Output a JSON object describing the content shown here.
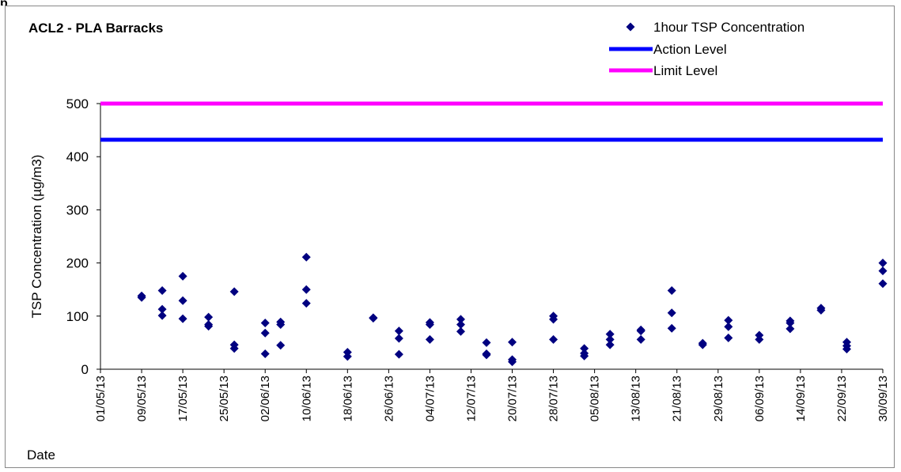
{
  "page_fragment": "p",
  "chart_data": {
    "type": "scatter",
    "title": "ACL2 - PLA Barracks",
    "xlabel": "Date",
    "ylabel": "TSP Concentration (µg/m3)",
    "ylim": [
      0,
      500
    ],
    "yticks": [
      "0",
      "100",
      "200",
      "300",
      "400",
      "500"
    ],
    "xlim": [
      "2013-05-01",
      "2013-09-30"
    ],
    "xticks": [
      "01/05/13",
      "09/05/13",
      "17/05/13",
      "25/05/13",
      "02/06/13",
      "10/06/13",
      "18/06/13",
      "26/06/13",
      "04/07/13",
      "12/07/13",
      "20/07/13",
      "28/07/13",
      "05/08/13",
      "13/08/13",
      "21/08/13",
      "29/08/13",
      "06/09/13",
      "14/09/13",
      "22/09/13",
      "30/09/13"
    ],
    "xtick_dates": [
      "2013-05-01",
      "2013-05-09",
      "2013-05-17",
      "2013-05-25",
      "2013-06-02",
      "2013-06-10",
      "2013-06-18",
      "2013-06-26",
      "2013-07-04",
      "2013-07-12",
      "2013-07-20",
      "2013-07-28",
      "2013-08-05",
      "2013-08-13",
      "2013-08-21",
      "2013-08-29",
      "2013-09-06",
      "2013-09-14",
      "2013-09-22",
      "2013-09-30"
    ],
    "grid": false,
    "legend_position": "top-right",
    "legend": [
      "1hour TSP Concentration",
      "Action Level",
      "Limit Level"
    ],
    "colors": {
      "points": "#000080",
      "action": "#0000ff",
      "limit": "#ff00ff"
    },
    "series": [
      {
        "name": "1hour TSP Concentration",
        "points": [
          [
            "2013-05-09",
            135
          ],
          [
            "2013-05-09",
            138
          ],
          [
            "2013-05-13",
            148
          ],
          [
            "2013-05-13",
            113
          ],
          [
            "2013-05-13",
            101
          ],
          [
            "2013-05-17",
            175
          ],
          [
            "2013-05-17",
            129
          ],
          [
            "2013-05-17",
            95
          ],
          [
            "2013-05-22",
            98
          ],
          [
            "2013-05-22",
            84
          ],
          [
            "2013-05-22",
            81
          ],
          [
            "2013-05-27",
            146
          ],
          [
            "2013-05-27",
            46
          ],
          [
            "2013-05-27",
            39
          ],
          [
            "2013-06-02",
            87
          ],
          [
            "2013-06-02",
            68
          ],
          [
            "2013-06-02",
            29
          ],
          [
            "2013-06-05",
            89
          ],
          [
            "2013-06-05",
            84
          ],
          [
            "2013-06-05",
            45
          ],
          [
            "2013-06-10",
            211
          ],
          [
            "2013-06-10",
            150
          ],
          [
            "2013-06-10",
            124
          ],
          [
            "2013-06-18",
            32
          ],
          [
            "2013-06-18",
            24
          ],
          [
            "2013-06-23",
            97
          ],
          [
            "2013-06-23",
            96
          ],
          [
            "2013-06-28",
            72
          ],
          [
            "2013-06-28",
            58
          ],
          [
            "2013-06-28",
            28
          ],
          [
            "2013-07-04",
            88
          ],
          [
            "2013-07-04",
            84
          ],
          [
            "2013-07-04",
            56
          ],
          [
            "2013-07-10",
            94
          ],
          [
            "2013-07-10",
            84
          ],
          [
            "2013-07-10",
            71
          ],
          [
            "2013-07-15",
            50
          ],
          [
            "2013-07-15",
            29
          ],
          [
            "2013-07-15",
            27
          ],
          [
            "2013-07-20",
            51
          ],
          [
            "2013-07-20",
            18
          ],
          [
            "2013-07-20",
            14
          ],
          [
            "2013-07-28",
            100
          ],
          [
            "2013-07-28",
            94
          ],
          [
            "2013-07-28",
            56
          ],
          [
            "2013-08-03",
            39
          ],
          [
            "2013-08-03",
            30
          ],
          [
            "2013-08-03",
            25
          ],
          [
            "2013-08-08",
            66
          ],
          [
            "2013-08-08",
            56
          ],
          [
            "2013-08-08",
            46
          ],
          [
            "2013-08-14",
            74
          ],
          [
            "2013-08-14",
            72
          ],
          [
            "2013-08-14",
            56
          ],
          [
            "2013-08-20",
            148
          ],
          [
            "2013-08-20",
            106
          ],
          [
            "2013-08-20",
            77
          ],
          [
            "2013-08-26",
            49
          ],
          [
            "2013-08-26",
            46
          ],
          [
            "2013-08-31",
            92
          ],
          [
            "2013-08-31",
            80
          ],
          [
            "2013-08-31",
            59
          ],
          [
            "2013-09-06",
            64
          ],
          [
            "2013-09-06",
            56
          ],
          [
            "2013-09-12",
            91
          ],
          [
            "2013-09-12",
            87
          ],
          [
            "2013-09-12",
            76
          ],
          [
            "2013-09-18",
            115
          ],
          [
            "2013-09-18",
            111
          ],
          [
            "2013-09-23",
            51
          ],
          [
            "2013-09-23",
            44
          ],
          [
            "2013-09-23",
            38
          ],
          [
            "2013-09-30",
            200
          ],
          [
            "2013-09-30",
            185
          ],
          [
            "2013-09-30",
            161
          ]
        ]
      },
      {
        "name": "Action Level",
        "value": 432
      },
      {
        "name": "Limit Level",
        "value": 500
      }
    ]
  }
}
